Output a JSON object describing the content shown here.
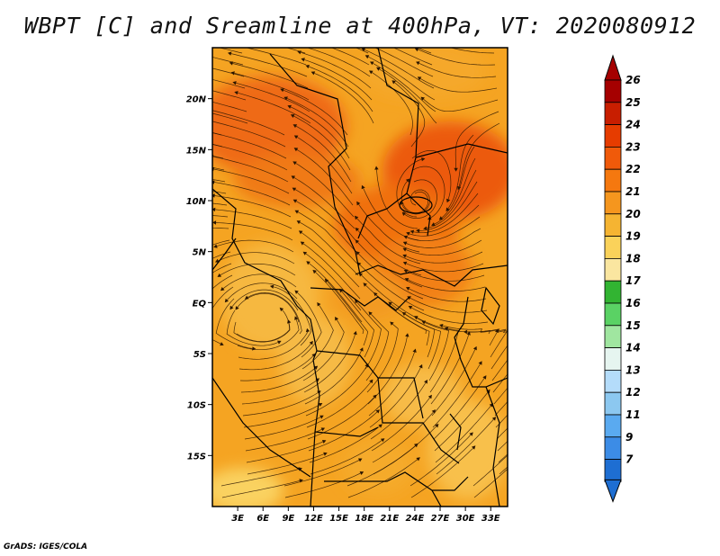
{
  "title": "WBPT [C] and Sreamline at 400hPa, VT: 2020080912",
  "footer": "GrADS: IGES/COLA",
  "map": {
    "lon_range": [
      0,
      35
    ],
    "lat_range": [
      -20,
      25
    ],
    "lon_ticks": [
      "3E",
      "6E",
      "9E",
      "12E",
      "15E",
      "18E",
      "21E",
      "24E",
      "27E",
      "30E",
      "33E"
    ],
    "lat_ticks": [
      "20N",
      "15N",
      "10N",
      "5N",
      "EQ",
      "5S",
      "10S",
      "15S"
    ]
  },
  "colorbar": {
    "levels": [
      "26",
      "25",
      "24",
      "23",
      "22",
      "21",
      "20",
      "19",
      "18",
      "17",
      "16",
      "15",
      "14",
      "13",
      "12",
      "11",
      "9",
      "7"
    ],
    "colors": [
      "#a50000",
      "#c81e00",
      "#e63c00",
      "#f05a0a",
      "#f5780f",
      "#f5961e",
      "#f5b432",
      "#fad25a",
      "#fae6a0",
      "#32b432",
      "#5ad264",
      "#a0e6a0",
      "#e6f5f0",
      "#b4dcfa",
      "#8cc8f0",
      "#5aaaf0",
      "#3c8ce6",
      "#1e6ed2"
    ]
  }
}
